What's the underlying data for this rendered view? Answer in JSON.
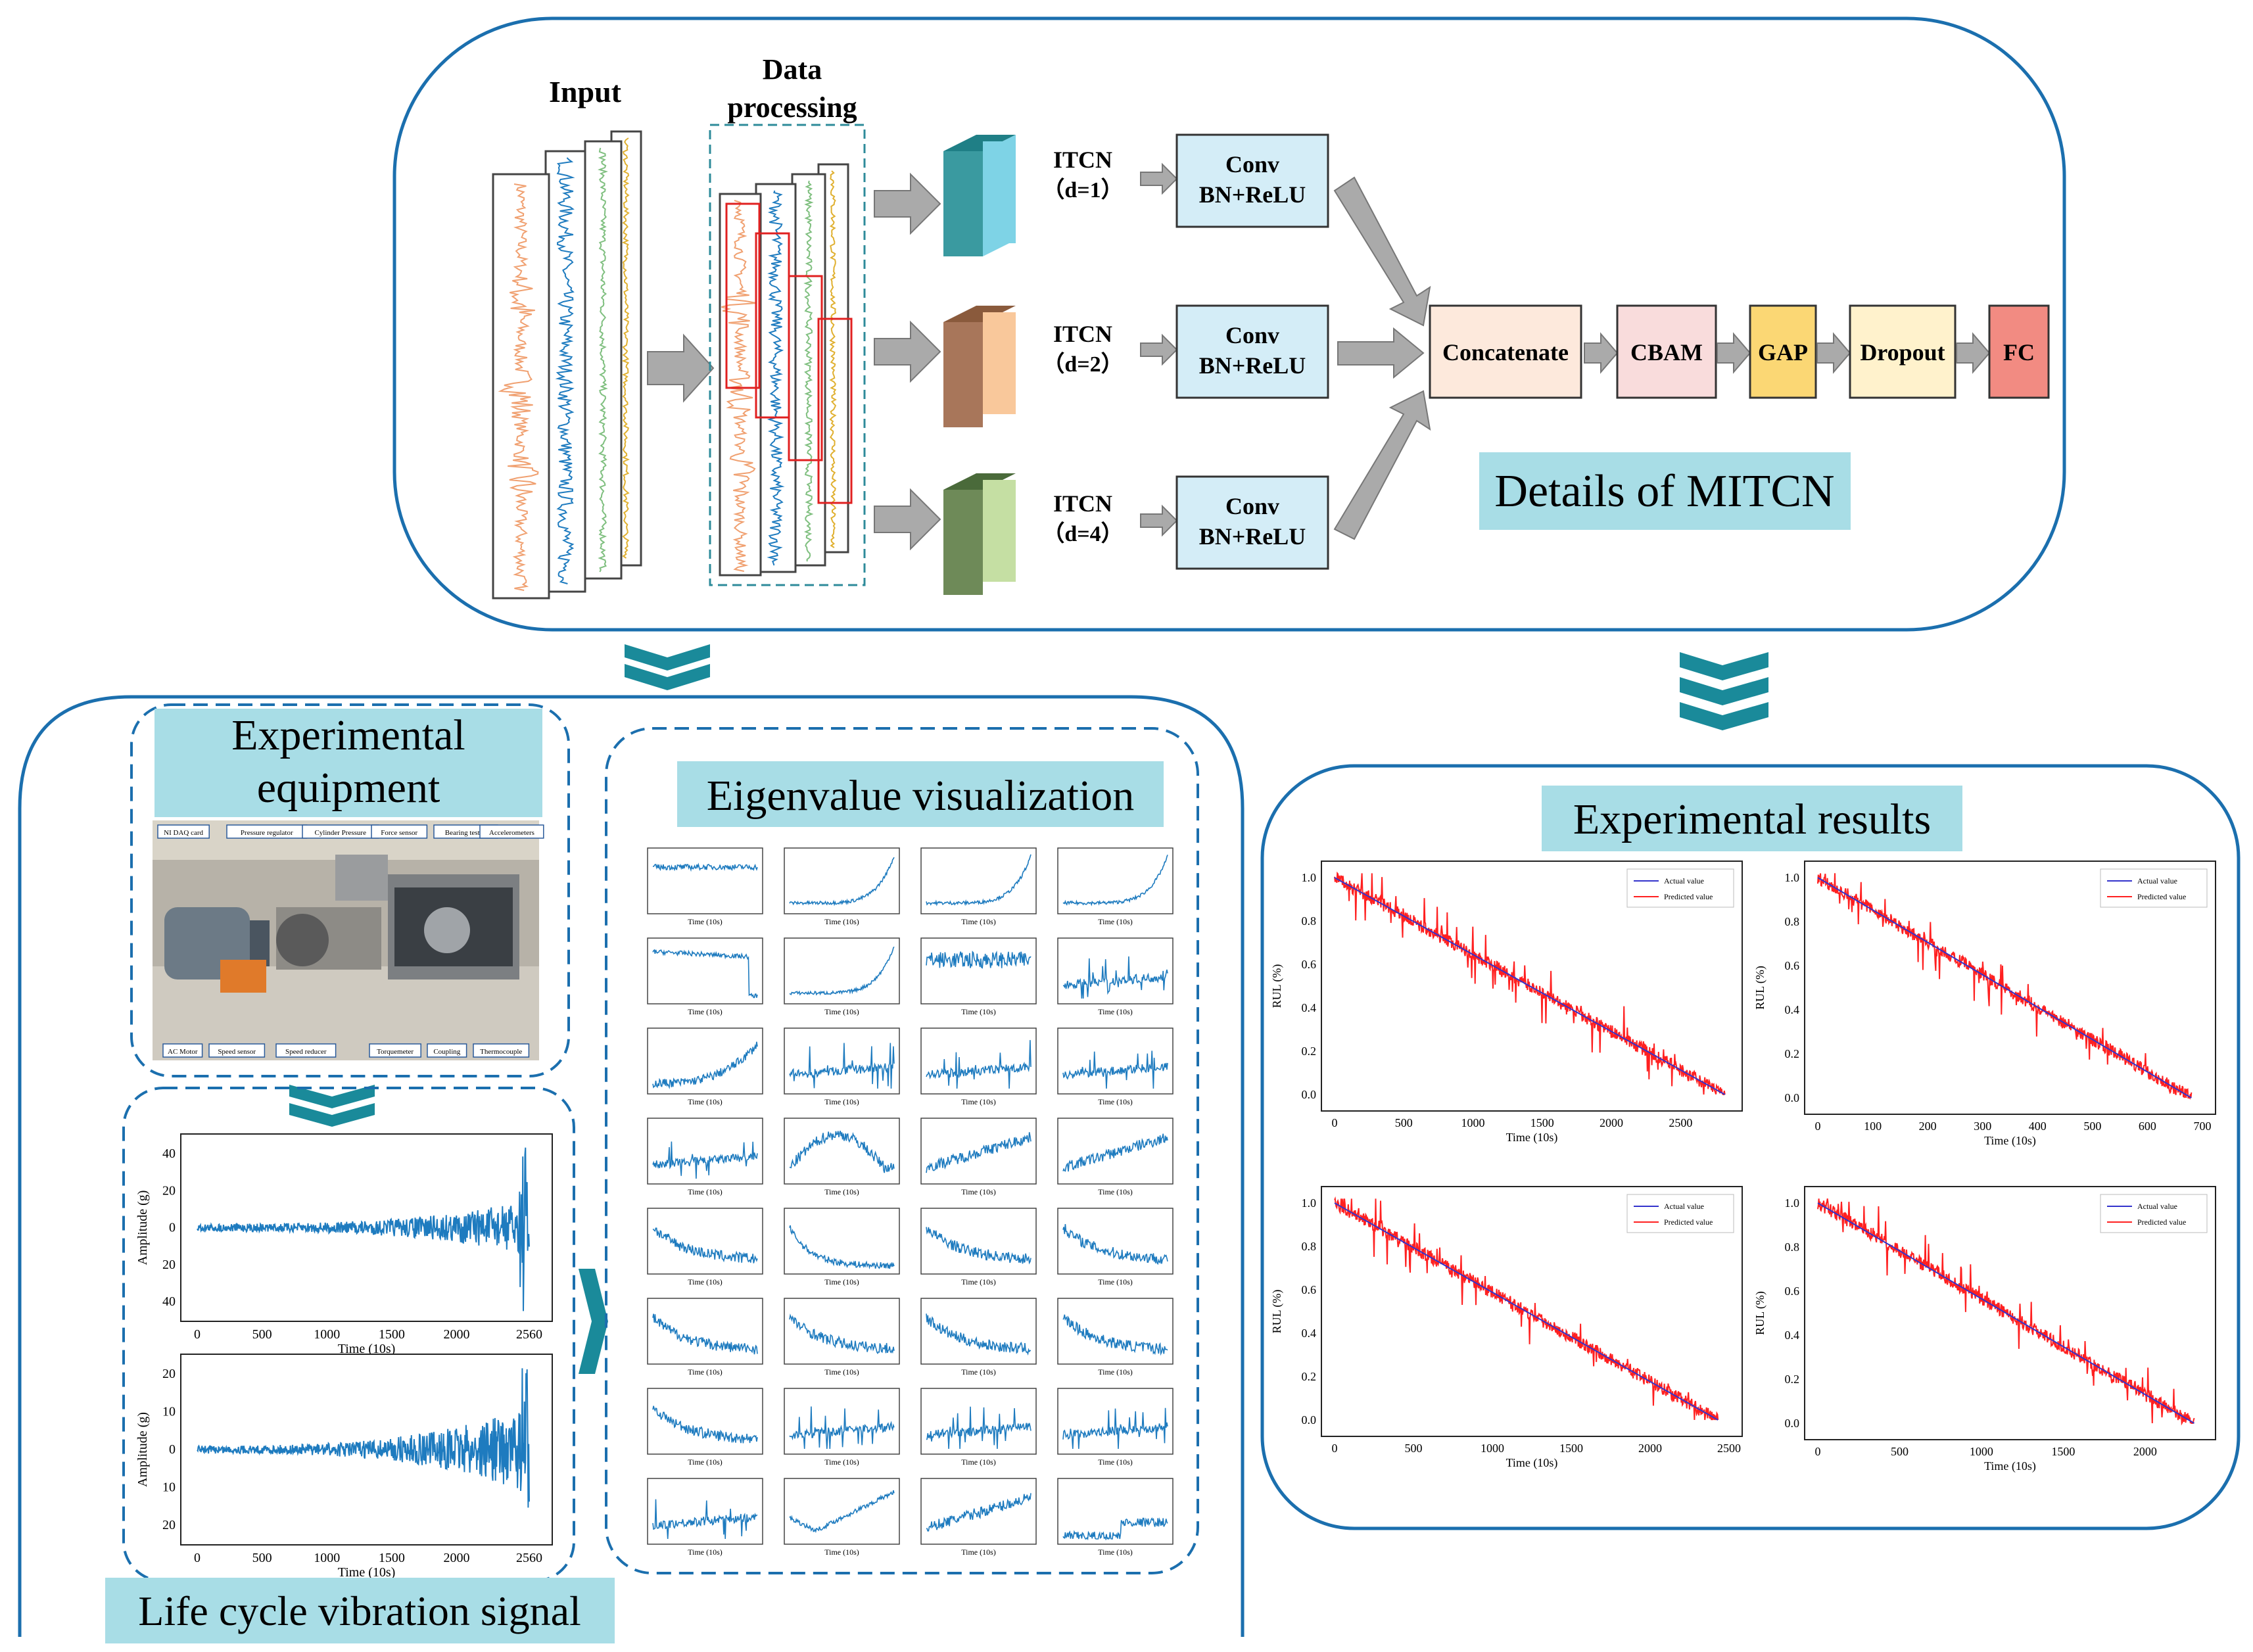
{
  "top_panel": {
    "input_label": "Input",
    "data_processing_label_1": "Data",
    "data_processing_label_2": "processing",
    "branches": [
      {
        "name": "ITCN",
        "dilation": "（d=1）",
        "block_top": "Conv",
        "block_bottom": "BN+ReLU",
        "color": "#7ed3e6"
      },
      {
        "name": "ITCN",
        "dilation": "（d=2）",
        "block_top": "Conv",
        "block_bottom": "BN+ReLU",
        "color": "#f9c89b"
      },
      {
        "name": "ITCN",
        "dilation": "（d=4）",
        "block_top": "Conv",
        "block_bottom": "BN+ReLU",
        "color": "#c5dfa3"
      }
    ],
    "pipeline": [
      {
        "label": "Concatenate",
        "color": "#fde9dc"
      },
      {
        "label": "CBAM",
        "color": "#f9dcdc"
      },
      {
        "label": "GAP",
        "color": "#fbd774"
      },
      {
        "label": "Dropout",
        "color": "#fff2cc"
      },
      {
        "label": "FC",
        "color": "#f28b82"
      }
    ],
    "caption": "Details of MITCN"
  },
  "left_panel": {
    "equipment_title_1": "Experimental",
    "equipment_title_2": "equipment",
    "equipment_labels": [
      "NI DAQ card",
      "Pressure regulator",
      "Cylinder Pressure",
      "Force sensor",
      "Bearing tested",
      "Accelerometers",
      "AC Motor",
      "Speed sensor",
      "Speed reducer",
      "Torquemeter",
      "Coupling",
      "Thermocouple"
    ],
    "eigen_title": "Eigenvalue visualization",
    "eigen_xlabel": "Time (10s)",
    "vibration_caption": "Life cycle vibration signal"
  },
  "vibration_charts": [
    {
      "ylabel": "Amplitude (g)",
      "xlabel": "Time (10s)",
      "xticks": [
        "0",
        "500",
        "1000",
        "1500",
        "2000",
        "2560"
      ],
      "yticks": [
        "40",
        "20",
        "0",
        "20",
        "40"
      ]
    },
    {
      "ylabel": "Amplitude (g)",
      "xlabel": "Time (10s)",
      "xticks": [
        "0",
        "500",
        "1000",
        "1500",
        "2000",
        "2560"
      ],
      "yticks": [
        "20",
        "10",
        "0",
        "10",
        "20"
      ]
    }
  ],
  "right_panel": {
    "title": "Experimental results"
  },
  "chart_data": [
    {
      "type": "line",
      "xlabel": "Time (10s)",
      "ylabel": "RUL (%)",
      "xlim": [
        0,
        2850
      ],
      "ylim": [
        0,
        1.0
      ],
      "xticks": [
        "0",
        "500",
        "1000",
        "1500",
        "2000",
        "2500"
      ],
      "yticks": [
        "0.0",
        "0.2",
        "0.4",
        "0.6",
        "0.8",
        "1.0"
      ],
      "series": [
        {
          "name": "Actual value",
          "color": "#3333cc",
          "x": [
            0,
            2820
          ],
          "y": [
            1.0,
            0.0
          ]
        },
        {
          "name": "Predicted value",
          "color": "#ff2020"
        }
      ]
    },
    {
      "type": "line",
      "xlabel": "Time (10s)",
      "ylabel": "RUL (%)",
      "xlim": [
        0,
        700
      ],
      "ylim": [
        0,
        1.0
      ],
      "xticks": [
        "0",
        "100",
        "200",
        "300",
        "400",
        "500",
        "600",
        "700"
      ],
      "yticks": [
        "0.0",
        "0.2",
        "0.4",
        "0.6",
        "0.8",
        "1.0"
      ],
      "series": [
        {
          "name": "Actual value",
          "color": "#3333cc",
          "x": [
            0,
            680
          ],
          "y": [
            1.0,
            0.0
          ]
        },
        {
          "name": "Predicted value",
          "color": "#ff2020"
        }
      ]
    },
    {
      "type": "line",
      "xlabel": "Time (10s)",
      "ylabel": "RUL (%)",
      "xlim": [
        0,
        2500
      ],
      "ylim": [
        0,
        1.0
      ],
      "xticks": [
        "0",
        "500",
        "1000",
        "1500",
        "2000",
        "2500"
      ],
      "yticks": [
        "0.0",
        "0.2",
        "0.4",
        "0.6",
        "0.8",
        "1.0"
      ],
      "series": [
        {
          "name": "Actual value",
          "color": "#3333cc",
          "x": [
            0,
            2430
          ],
          "y": [
            1.0,
            0.0
          ]
        },
        {
          "name": "Predicted value",
          "color": "#ff2020"
        }
      ]
    },
    {
      "type": "line",
      "xlabel": "Time (10s)",
      "ylabel": "RUL (%)",
      "xlim": [
        0,
        2350
      ],
      "ylim": [
        0,
        1.0
      ],
      "xticks": [
        "0",
        "500",
        "1000",
        "1500",
        "2000"
      ],
      "yticks": [
        "0.0",
        "0.2",
        "0.4",
        "0.6",
        "0.8",
        "1.0"
      ],
      "series": [
        {
          "name": "Actual value",
          "color": "#3333cc",
          "x": [
            0,
            2300
          ],
          "y": [
            1.0,
            0.0
          ]
        },
        {
          "name": "Predicted value",
          "color": "#ff2020"
        }
      ]
    }
  ]
}
